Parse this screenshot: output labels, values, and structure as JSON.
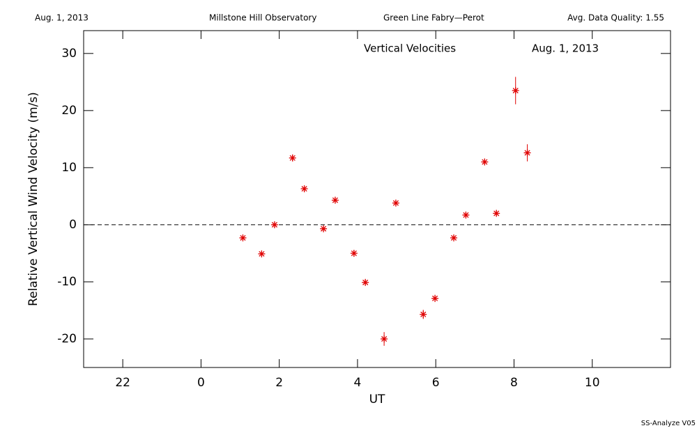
{
  "chart_data": {
    "type": "scatter",
    "header": {
      "left": "Aug. 1, 2013",
      "center_left": "Millstone Hill Observatory",
      "center_right": "Green Line Fabry—Perot",
      "right": "Avg. Data Quality: 1.55"
    },
    "title": "Vertical Velocities",
    "annotation": "Aug. 1, 2013",
    "xlabel": "UT",
    "ylabel": "Relative Vertical Wind Velocity (m/s)",
    "footer": "SS-Analyze V05",
    "x": [
      1.07,
      1.55,
      1.88,
      2.34,
      2.64,
      3.13,
      3.43,
      3.91,
      4.2,
      4.68,
      4.98,
      5.68,
      5.98,
      6.46,
      6.77,
      7.25,
      7.55,
      8.04,
      8.34
    ],
    "series": [
      {
        "name": "Vertical Velocity",
        "color": "#e00000",
        "values": [
          -2.3,
          -5.1,
          0,
          11.7,
          6.3,
          -0.7,
          4.3,
          -5.0,
          -10.1,
          -20.0,
          3.8,
          -15.7,
          -12.9,
          -2.3,
          1.7,
          11.0,
          2.0,
          23.5,
          12.6
        ],
        "errors": [
          0.5,
          0.5,
          0.5,
          0.6,
          0.5,
          0.5,
          0.5,
          0.5,
          0.5,
          1.2,
          0.5,
          0.8,
          0.6,
          0.5,
          0.6,
          0.5,
          0.5,
          2.4,
          1.5
        ]
      }
    ],
    "xlim": [
      -3,
      12
    ],
    "xticks": [
      {
        "value": -2,
        "label": "22"
      },
      0,
      2,
      4,
      6,
      8,
      10
    ],
    "ylim": [
      -25,
      34
    ],
    "yticks": [
      -20,
      -10,
      0,
      10,
      20,
      30
    ],
    "reference_line": 0
  }
}
